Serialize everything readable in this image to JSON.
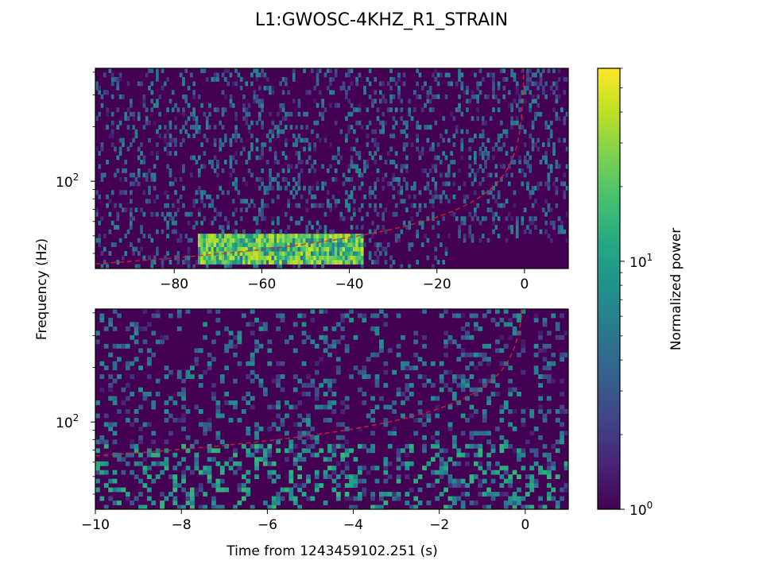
{
  "title": "L1:GWOSC-4KHZ_R1_STRAIN",
  "ylabel": "Frequency (Hz)",
  "xlabel": "Time from 1243459102.251 (s)",
  "colorbar": {
    "label": "Normalized power",
    "scale": "log",
    "colormap": "viridis",
    "range": [
      1,
      60
    ],
    "ticks": [
      {
        "value": 1,
        "base": "10",
        "exp": "0"
      },
      {
        "value": 10,
        "base": "10",
        "exp": "1"
      }
    ]
  },
  "chart_data": [
    {
      "type": "heatmap",
      "panel": "top",
      "xlim": [
        -98,
        10
      ],
      "yscale": "log",
      "ylim": [
        33,
        420
      ],
      "xticks": [
        {
          "value": -80,
          "label": "−80"
        },
        {
          "value": -60,
          "label": "−60"
        },
        {
          "value": -40,
          "label": "−40"
        },
        {
          "value": -20,
          "label": "−20"
        },
        {
          "value": 0,
          "label": "0"
        }
      ],
      "yticks": [
        {
          "value": 100,
          "base": "10",
          "exp": "2"
        }
      ],
      "track": {
        "color": "#d62728",
        "style": "dashed",
        "t_merge": 0,
        "f_start": 35
      },
      "bright_band": {
        "t": [
          -75,
          -37
        ],
        "f": [
          35,
          50
        ],
        "peak_power": 45
      }
    },
    {
      "type": "heatmap",
      "panel": "bottom",
      "xlim": [
        -10,
        1
      ],
      "yscale": "log",
      "ylim": [
        33,
        420
      ],
      "xticks": [
        {
          "value": -10,
          "label": "−10"
        },
        {
          "value": -8,
          "label": "−8"
        },
        {
          "value": -6,
          "label": "−6"
        },
        {
          "value": -4,
          "label": "−4"
        },
        {
          "value": -2,
          "label": "−2"
        },
        {
          "value": 0,
          "label": "0"
        }
      ],
      "yticks": [
        {
          "value": 100,
          "base": "10",
          "exp": "2"
        }
      ],
      "track": {
        "color": "#d62728",
        "style": "dashed",
        "t_merge": 0,
        "f_start": 65
      }
    }
  ]
}
